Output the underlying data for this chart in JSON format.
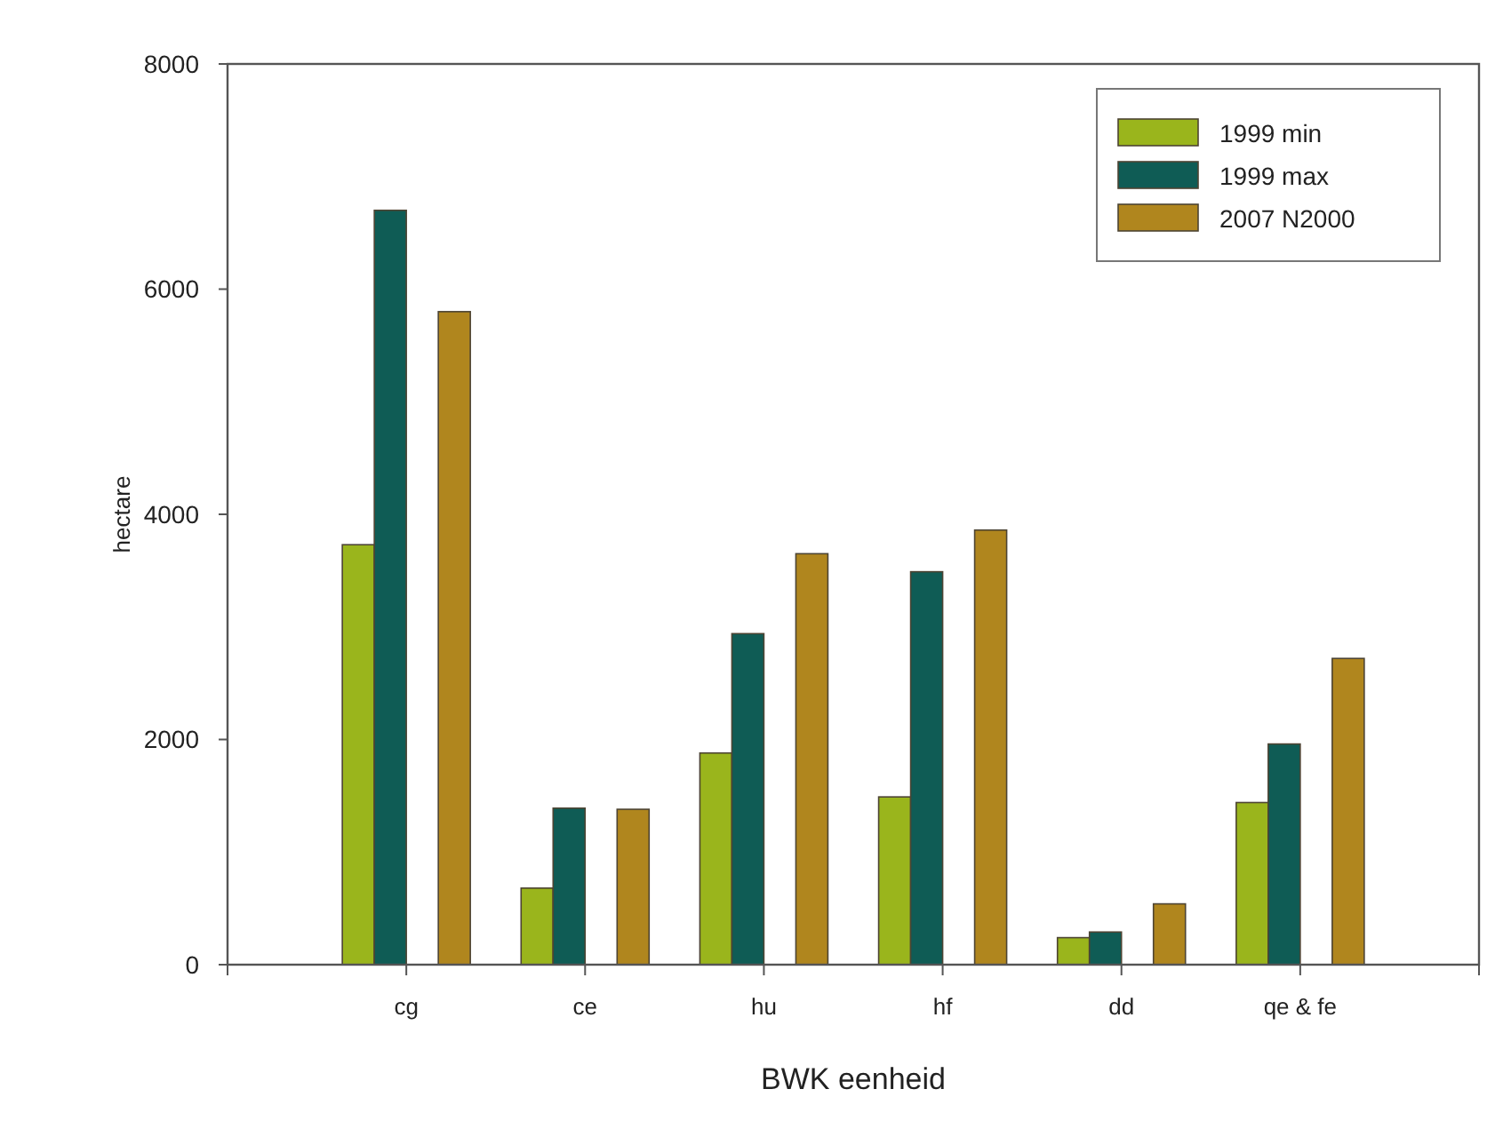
{
  "chart_data": {
    "type": "bar",
    "xlabel": "BWK eenheid",
    "ylabel": "hectare",
    "categories": [
      "cg",
      "ce",
      "hu",
      "hf",
      "dd",
      "qe & fe"
    ],
    "series": [
      {
        "name": "1999 min",
        "color": "#9ab51c",
        "values": [
          3730,
          680,
          1880,
          1490,
          240,
          1440
        ]
      },
      {
        "name": "1999 max",
        "color": "#0f5c55",
        "values": [
          6700,
          1390,
          2940,
          3490,
          290,
          1960
        ]
      },
      {
        "name": "2007 N2000",
        "color": "#b0861e",
        "values": [
          5800,
          1380,
          3650,
          3860,
          540,
          2720
        ]
      }
    ],
    "ylim": [
      0,
      8000
    ],
    "yticks": [
      0,
      2000,
      4000,
      6000,
      8000
    ],
    "grid": false,
    "legend": "top right"
  }
}
